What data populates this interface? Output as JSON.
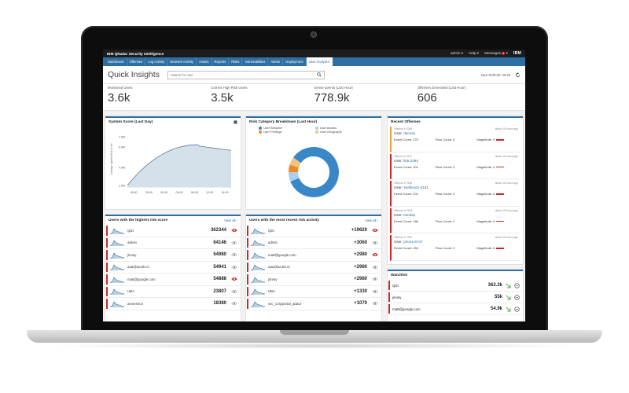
{
  "titlebar": {
    "app_title": "IBM QRadar Security Intelligence",
    "admin": "admin ▾",
    "help": "Help ▾",
    "messages": "Messages",
    "messages_count": "9",
    "brand": "IBM"
  },
  "nav": {
    "tabs": [
      "Dashboard",
      "Offenses",
      "Log Activity",
      "Network Activity",
      "Assets",
      "Reports",
      "Risks",
      "Vulnerabilities",
      "Admin",
      "Deployment",
      "User Analytics"
    ],
    "active_index": 10
  },
  "header": {
    "title": "Quick Insights",
    "search_placeholder": "Search for user",
    "refresh_label": "Next Refresh: 00:45"
  },
  "metrics": [
    {
      "label": "Monitored Users",
      "value": "3.6k"
    },
    {
      "label": "Current High Risk Users",
      "value": "3.5k"
    },
    {
      "label": "Sense Events (Last Hour)",
      "value": "778.9k"
    },
    {
      "label": "Offenses Generated (Last Hour)",
      "value": "606"
    }
  ],
  "system_score": {
    "title": "System Score (Last Day)",
    "ylabel": "Average System Risk Score",
    "yticks": [
      "7.0M",
      "6.0M",
      "4.0M",
      "2.0M"
    ],
    "xticks": [
      "16:00",
      "20:00",
      "00:00",
      "04:00",
      "08:00",
      "12:00",
      "14:00"
    ]
  },
  "risk_category": {
    "title": "Risk Category Breakdown (Last Hour)",
    "legend": [
      {
        "label": "User Behavior",
        "color": "#3a87c8"
      },
      {
        "label": "User Access",
        "color": "#a9d0ee"
      },
      {
        "label": "User Privilege",
        "color": "#f08a28"
      },
      {
        "label": "User Geography",
        "color": "#f4c27a"
      }
    ]
  },
  "highest_risk": {
    "title": "Users with the highest risk score",
    "view_all": "View all",
    "rows": [
      {
        "name": "QDI",
        "value": "362344",
        "alert": true
      },
      {
        "name": "admin",
        "value": "64146",
        "alert": false
      },
      {
        "name": "jimmy",
        "value": "54980",
        "alert": false
      },
      {
        "name": "aaa@aa.bb.cc",
        "value": "54941",
        "alert": false
      },
      {
        "name": "matt@google.com",
        "value": "54888",
        "alert": true
      },
      {
        "name": "UBA",
        "value": "23807",
        "alert": false
      },
      {
        "name": "amservice",
        "value": "18380",
        "alert": false
      }
    ]
  },
  "recent_activity": {
    "title": "Users with the most recent risk activity",
    "view_all": "View all",
    "rows": [
      {
        "name": "QDI",
        "value": "+19620",
        "alert": true
      },
      {
        "name": "admin",
        "value": "+3060",
        "alert": false
      },
      {
        "name": "matt@google.com",
        "value": "+2980",
        "alert": true
      },
      {
        "name": "aaa@aa.bb.cc",
        "value": "+2980",
        "alert": false
      },
      {
        "name": "jimmy",
        "value": "+2980",
        "alert": false
      },
      {
        "name": "UBA",
        "value": "+1330",
        "alert": false
      },
      {
        "name": "svc_corpportal_adaut",
        "value": "+1070",
        "alert": false
      }
    ]
  },
  "recent_offenses": {
    "title": "Recent Offenses",
    "items": [
      {
        "id": "Offense # 7638",
        "ago": "about 18 hours ago",
        "user_label": "User:",
        "user": "dacusa",
        "events": "Event Count: 270",
        "flows": "Flow Count: 0",
        "magnitude": "Magnitude: 5",
        "sev": "orange"
      },
      {
        "id": "Offense # 7637",
        "ago": "about 18 hours ago",
        "user_label": "User:",
        "user": "lkj5-2394",
        "events": "Event Count: 201",
        "flows": "Flow Count: 0",
        "magnitude": "Magnitude: 6",
        "sev": "red"
      },
      {
        "id": "Offense # 7636",
        "ago": "about 18 hours ago",
        "user_label": "User:",
        "user": "seaflood1-0151",
        "events": "Event Count: 201",
        "flows": "Flow Count: 0",
        "magnitude": "Magnitude: 6",
        "sev": "red"
      },
      {
        "id": "Offense # 7635",
        "ago": "about 18 hours ago",
        "user_label": "User:",
        "user": "benitsp",
        "events": "Event Count: 185",
        "flows": "Flow Count: 0",
        "magnitude": "Magnitude: 6",
        "sev": "red"
      },
      {
        "id": "Offense # 7634",
        "ago": "about 18 hours ago",
        "user_label": "User:",
        "user": "price1-5747",
        "events": "Event Count: 254",
        "flows": "Flow Count: 0",
        "magnitude": "Magnitude: 6",
        "sev": "red"
      }
    ]
  },
  "watchlist": {
    "title": "Watchlist",
    "rows": [
      {
        "name": "QDI",
        "value": "362.3k"
      },
      {
        "name": "jimmy",
        "value": "55k"
      },
      {
        "name": "matt@google.com",
        "value": "54.9k"
      }
    ]
  }
}
